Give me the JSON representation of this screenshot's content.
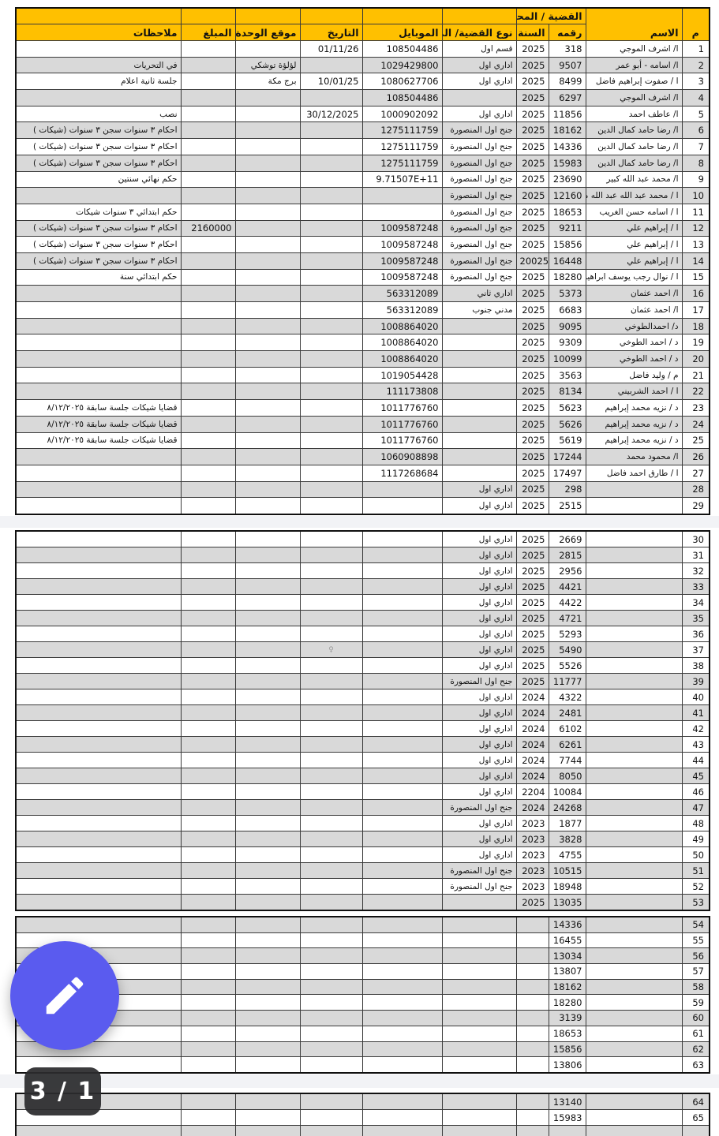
{
  "viewer": {
    "page_indicator": "3 / 1",
    "fab": {
      "icon": "pencil-edit-icon",
      "color": "#5a5bef"
    }
  },
  "colors": {
    "header_bg": "#ffc000",
    "row_shade": "#d9d9d9",
    "fab": "#5a5bef",
    "badge_bg": "#2b2b2d",
    "page_gap_band": "#f2f3f6"
  },
  "table": {
    "group_header": "القضية / المحضر",
    "columns": {
      "num": "م",
      "name": "الاسم",
      "case_no": "رقمه",
      "year": "السنة",
      "type": "نوع القضية/ الم",
      "mobile": "الموبايل",
      "date": "التاريخ",
      "unit": "موقع الوحدة",
      "amount": "المبلغ",
      "notes": "ملاحظات"
    },
    "column_keys": [
      "num",
      "name",
      "case_no",
      "year",
      "type",
      "mobile",
      "date",
      "unit",
      "amount",
      "notes"
    ],
    "sections": [
      {
        "first_row_shaded": false,
        "white_num_rows": [],
        "rows": [
          [
            "1",
            "ا/ اشرف الموجي",
            "318",
            "2025",
            "قسم اول",
            "108504486",
            "01/11/26",
            "",
            "",
            ""
          ],
          [
            "2",
            "ا/ اسامه - أبو عمر",
            "9507",
            "2025",
            "اداري اول",
            "1029429800",
            "",
            "لؤلؤة توشكي",
            "",
            "في التحريات"
          ],
          [
            "3",
            "ا / صفوت إبراهيم فاضل",
            "8499",
            "2025",
            "اداري اول",
            "1080627706",
            "10/01/25",
            "برج مكة",
            "",
            "جلسة ثانية اعلام"
          ],
          [
            "4",
            "ا/ اشرف الموجي",
            "6297",
            "2025",
            "",
            "108504486",
            "",
            "",
            "",
            ""
          ],
          [
            "5",
            "ا/ عاطف احمد",
            "11856",
            "2025",
            "اداري اول",
            "1000902092",
            "30/12/2025",
            "",
            "",
            "نصب"
          ],
          [
            "6",
            "ا/ رضا حامد كمال الدين",
            "18162",
            "2025",
            "جنح اول المنصورة",
            "1275111759",
            "",
            "",
            "",
            "احكام ٣ سنوات سجن ٣ سنوات (شيكات )"
          ],
          [
            "7",
            "ا/ رضا حامد كمال الدين",
            "14336",
            "2025",
            "جنح اول المنصورة",
            "1275111759",
            "",
            "",
            "",
            "احكام ٣ سنوات سجن ٣ سنوات (شيكات )"
          ],
          [
            "8",
            "ا/ رضا حامد كمال الدين",
            "15983",
            "2025",
            "جنح اول المنصورة",
            "1275111759",
            "",
            "",
            "",
            "احكام ٣ سنوات سجن ٣ سنوات (شيكات )"
          ],
          [
            "9",
            "ا/ محمد عبد الله كبير",
            "23690",
            "2025",
            "جنح اول المنصورة",
            "9.71507E+11",
            "",
            "",
            "",
            "حكم نهائي سنتين"
          ],
          [
            "10",
            "ا / محمد عبد الله عبد الله محمد",
            "12160",
            "2025",
            "جنح اول المنصورة",
            "",
            "",
            "",
            "",
            ""
          ],
          [
            "11",
            "ا / اسامه حسن الغريب",
            "18653",
            "2025",
            "جنح اول المنصورة",
            "",
            "",
            "",
            "",
            "حكم ابتدائي ٣ سنوات شيكات"
          ],
          [
            "12",
            "ا / إبراهيم علي",
            "9211",
            "2025",
            "جنح اول المنصورة",
            "1009587248",
            "",
            "",
            "2160000",
            "احكام ٣ سنوات سجن ٣ سنوات (شيكات )"
          ],
          [
            "13",
            "ا / إبراهيم علي",
            "15856",
            "2025",
            "جنح اول المنصورة",
            "1009587248",
            "",
            "",
            "",
            "احكام ٣ سنوات سجن ٣ سنوات (شيكات )"
          ],
          [
            "14",
            "ا / إبراهيم علي",
            "16448",
            "20025",
            "جنح اول المنصورة",
            "1009587248",
            "",
            "",
            "",
            "احكام ٣ سنوات سجن ٣ سنوات (شيكات )"
          ],
          [
            "15",
            "ا / نوال رجب يوسف ابراهيم",
            "18280",
            "2025",
            "جنح اول المنصورة",
            "1009587248",
            "",
            "",
            "",
            "حكم ابتدائي سنة"
          ],
          [
            "16",
            "ا/ احمد عثمان",
            "5373",
            "2025",
            "اداري ثاني",
            "563312089",
            "",
            "",
            "",
            ""
          ],
          [
            "17",
            "ا/ احمد عثمان",
            "6683",
            "2025",
            "مدني جنوب",
            "563312089",
            "",
            "",
            "",
            ""
          ],
          [
            "18",
            "د/ احمدالطوخي",
            "9095",
            "2025",
            "",
            "1008864020",
            "",
            "",
            "",
            ""
          ],
          [
            "19",
            "د / احمد الطوخي",
            "9309",
            "2025",
            "",
            "1008864020",
            "",
            "",
            "",
            ""
          ],
          [
            "20",
            "د / احمد الطوخي",
            "10099",
            "2025",
            "",
            "1008864020",
            "",
            "",
            "",
            ""
          ],
          [
            "21",
            "م / وليد فاضل",
            "3563",
            "2025",
            "",
            "1019054428",
            "",
            "",
            "",
            ""
          ],
          [
            "22",
            "ا / احمد الشربيني",
            "8134",
            "2025",
            "",
            "111173808",
            "",
            "",
            "",
            ""
          ],
          [
            "23",
            "د / نزيه محمد إبراهيم",
            "5623",
            "2025",
            "",
            "1011776760",
            "",
            "",
            "",
            "قضايا شيكات جلسة سابقة ٨/١٢/٢٠٢٥"
          ],
          [
            "24",
            "د / نزيه محمد إبراهيم",
            "5626",
            "2025",
            "",
            "1011776760",
            "",
            "",
            "",
            "قضايا شيكات جلسة سابقة ٨/١٢/٢٠٢٥"
          ],
          [
            "25",
            "د / نزيه محمد إبراهيم",
            "5619",
            "2025",
            "",
            "1011776760",
            "",
            "",
            "",
            "قضايا شيكات جلسة سابقة ٨/١٢/٢٠٢٥"
          ],
          [
            "26",
            "ا/ محمود محمد",
            "17244",
            "2025",
            "",
            "1060908898",
            "",
            "",
            "",
            ""
          ],
          [
            "27",
            "ا / طارق احمد فاضل",
            "17497",
            "2025",
            "",
            "1117268684",
            "",
            "",
            "",
            ""
          ],
          [
            "28",
            "",
            "298",
            "2025",
            "اداري اول",
            "",
            "",
            "",
            "",
            ""
          ],
          [
            "29",
            "",
            "2515",
            "2025",
            "اداري اول",
            "",
            "",
            "",
            "",
            ""
          ]
        ]
      },
      {
        "first_row_shaded": false,
        "white_num_rows": [
          "31",
          "37",
          "43",
          "49"
        ],
        "rows": [
          [
            "30",
            "",
            "2669",
            "2025",
            "اداري اول",
            "",
            "",
            "",
            "",
            ""
          ],
          [
            "31",
            "",
            "2815",
            "2025",
            "اداري اول",
            "",
            "",
            "",
            "",
            ""
          ],
          [
            "32",
            "",
            "2956",
            "2025",
            "اداري اول",
            "",
            "",
            "",
            "",
            ""
          ],
          [
            "33",
            "",
            "4421",
            "2025",
            "اداري اول",
            "",
            "",
            "",
            "",
            ""
          ],
          [
            "34",
            "",
            "4422",
            "2025",
            "اداري اول",
            "",
            "",
            "",
            "",
            ""
          ],
          [
            "35",
            "",
            "4721",
            "2025",
            "اداري اول",
            "",
            "",
            "",
            "",
            ""
          ],
          [
            "36",
            "",
            "5293",
            "2025",
            "اداري اول",
            "",
            "",
            "",
            "",
            ""
          ],
          [
            "37",
            "",
            "5490",
            "2025",
            "اداري اول",
            "",
            "♀",
            "",
            "",
            ""
          ],
          [
            "38",
            "",
            "5526",
            "2025",
            "اداري اول",
            "",
            "",
            "",
            "",
            ""
          ],
          [
            "39",
            "",
            "11777",
            "2025",
            "جنح اول المنصورة",
            "",
            "",
            "",
            "",
            ""
          ],
          [
            "40",
            "",
            "4322",
            "2024",
            "اداري اول",
            "",
            "",
            "",
            "",
            ""
          ],
          [
            "41",
            "",
            "2481",
            "2024",
            "اداري اول",
            "",
            "",
            "",
            "",
            ""
          ],
          [
            "42",
            "",
            "6102",
            "2024",
            "اداري اول",
            "",
            "",
            "",
            "",
            ""
          ],
          [
            "43",
            "",
            "6261",
            "2024",
            "اداري اول",
            "",
            "",
            "",
            "",
            ""
          ],
          [
            "44",
            "",
            "7744",
            "2024",
            "اداري اول",
            "",
            "",
            "",
            "",
            ""
          ],
          [
            "45",
            "",
            "8050",
            "2024",
            "اداري اول",
            "",
            "",
            "",
            "",
            ""
          ],
          [
            "46",
            "",
            "10084",
            "2204",
            "اداري اول",
            "",
            "",
            "",
            "",
            ""
          ],
          [
            "47",
            "",
            "24268",
            "2024",
            "جنح اول المنصورة",
            "",
            "",
            "",
            "",
            ""
          ],
          [
            "48",
            "",
            "1877",
            "2023",
            "اداري اول",
            "",
            "",
            "",
            "",
            ""
          ],
          [
            "49",
            "",
            "3828",
            "2023",
            "اداري اول",
            "",
            "",
            "",
            "",
            ""
          ],
          [
            "50",
            "",
            "4755",
            "2023",
            "اداري اول",
            "",
            "",
            "",
            "",
            ""
          ],
          [
            "51",
            "",
            "10515",
            "2023",
            "جنح اول المنصورة",
            "",
            "",
            "",
            "",
            ""
          ],
          [
            "52",
            "",
            "18948",
            "2023",
            "جنح اول المنصورة",
            "",
            "",
            "",
            "",
            ""
          ],
          [
            "53",
            "",
            "13035",
            "2025",
            "",
            "",
            "",
            "",
            "",
            ""
          ]
        ]
      },
      {
        "first_row_shaded": true,
        "white_num_rows": [],
        "rows": [
          [
            "54",
            "",
            "14336",
            "",
            "",
            "",
            "",
            "",
            "",
            ""
          ],
          [
            "55",
            "",
            "16455",
            "",
            "",
            "",
            "",
            "",
            "",
            ""
          ],
          [
            "56",
            "",
            "13034",
            "",
            "",
            "",
            "",
            "",
            "",
            ""
          ],
          [
            "57",
            "",
            "13807",
            "",
            "",
            "",
            "",
            "",
            "",
            ""
          ],
          [
            "58",
            "",
            "18162",
            "",
            "",
            "",
            "",
            "",
            "",
            ""
          ],
          [
            "59",
            "",
            "18280",
            "",
            "",
            "",
            "",
            "",
            "",
            ""
          ],
          [
            "60",
            "",
            "3139",
            "",
            "",
            "",
            "",
            "",
            "",
            ""
          ],
          [
            "61",
            "",
            "18653",
            "",
            "",
            "",
            "",
            "",
            "",
            ""
          ],
          [
            "62",
            "",
            "15856",
            "",
            "",
            "",
            "",
            "",
            "",
            ""
          ],
          [
            "63",
            "",
            "13806",
            "",
            "",
            "",
            "",
            "",
            "",
            ""
          ]
        ]
      },
      {
        "first_row_shaded": true,
        "white_num_rows": [],
        "rows": [
          [
            "64",
            "",
            "13140",
            "",
            "",
            "",
            "",
            "",
            "",
            ""
          ],
          [
            "65",
            "",
            "15983",
            "",
            "",
            "",
            "",
            "",
            "",
            ""
          ],
          [
            "",
            "",
            "",
            "",
            "",
            "",
            "",
            "",
            "",
            ""
          ]
        ]
      }
    ]
  }
}
